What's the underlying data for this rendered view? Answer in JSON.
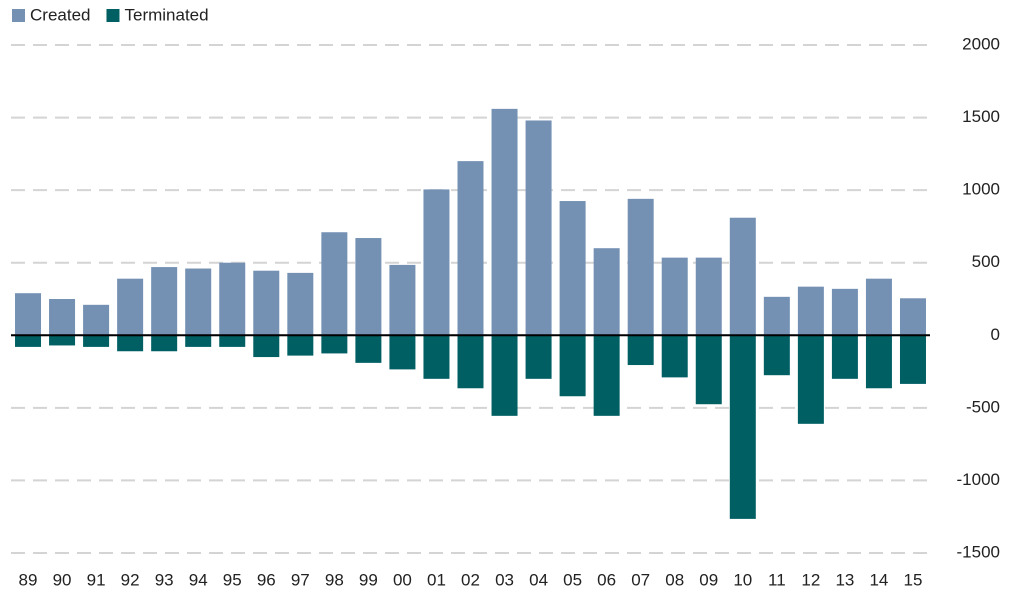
{
  "chart_data": {
    "type": "bar",
    "categories": [
      "89",
      "90",
      "91",
      "92",
      "93",
      "94",
      "95",
      "96",
      "97",
      "98",
      "99",
      "00",
      "01",
      "02",
      "03",
      "04",
      "05",
      "06",
      "07",
      "08",
      "09",
      "10",
      "11",
      "12",
      "13",
      "14",
      "15"
    ],
    "series": [
      {
        "name": "Created",
        "color": "#7491b4",
        "values": [
          290,
          250,
          210,
          390,
          470,
          460,
          500,
          445,
          430,
          710,
          670,
          485,
          1005,
          1200,
          1560,
          1480,
          925,
          600,
          940,
          535,
          535,
          810,
          265,
          335,
          320,
          390,
          255
        ]
      },
      {
        "name": "Terminated",
        "color": "#005f63",
        "values": [
          -80,
          -70,
          -80,
          -110,
          -110,
          -80,
          -80,
          -150,
          -140,
          -125,
          -190,
          -235,
          -300,
          -365,
          -555,
          -300,
          -420,
          -555,
          -205,
          -290,
          -475,
          -1265,
          -275,
          -610,
          -300,
          -365,
          -335
        ]
      }
    ],
    "ylim": [
      -1500,
      2000
    ],
    "yticks": [
      -1500,
      -1000,
      -500,
      0,
      500,
      1000,
      1500,
      2000
    ],
    "grid": true,
    "legend": "top-left"
  }
}
